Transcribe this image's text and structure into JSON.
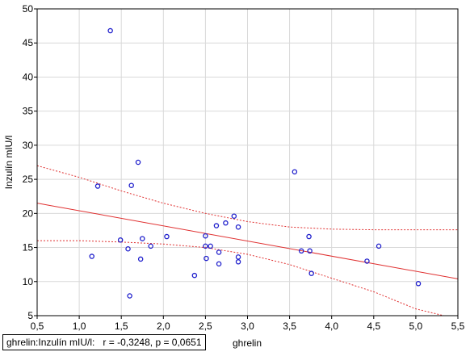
{
  "chart_data": {
    "type": "scatter",
    "xlabel": "ghrelin",
    "ylabel": "Inzulín mIU/l",
    "xlim": [
      0.5,
      5.5
    ],
    "ylim": [
      5,
      50
    ],
    "x_ticks": [
      "0,5",
      "1,0",
      "1,5",
      "2,0",
      "2,5",
      "3,0",
      "3,5",
      "4,0",
      "4,5",
      "5,0",
      "5,5"
    ],
    "y_ticks": [
      "5",
      "10",
      "15",
      "20",
      "25",
      "30",
      "35",
      "40",
      "45",
      "50"
    ],
    "grid": true,
    "legend": {
      "label": "ghrelin:Inzulín mIU/l:",
      "stats": "r = -0,3248, p = 0,0651",
      "placement": "bottom-left"
    },
    "colors": {
      "points": "#1f1fcc",
      "fit": "#e03030",
      "grid": "#d9d9d9"
    },
    "points": [
      [
        1.37,
        46.8
      ],
      [
        1.7,
        27.5
      ],
      [
        1.22,
        24.0
      ],
      [
        1.62,
        24.1
      ],
      [
        3.56,
        26.1
      ],
      [
        1.15,
        13.7
      ],
      [
        1.49,
        16.1
      ],
      [
        1.58,
        14.8
      ],
      [
        1.6,
        7.9
      ],
      [
        1.73,
        13.3
      ],
      [
        1.75,
        16.3
      ],
      [
        1.85,
        15.2
      ],
      [
        2.04,
        16.6
      ],
      [
        2.37,
        10.9
      ],
      [
        2.5,
        16.7
      ],
      [
        2.5,
        15.2
      ],
      [
        2.51,
        13.4
      ],
      [
        2.56,
        15.2
      ],
      [
        2.63,
        18.2
      ],
      [
        2.66,
        14.3
      ],
      [
        2.66,
        12.6
      ],
      [
        2.74,
        18.6
      ],
      [
        2.84,
        19.6
      ],
      [
        2.89,
        18.0
      ],
      [
        2.89,
        13.6
      ],
      [
        2.89,
        12.9
      ],
      [
        3.64,
        14.5
      ],
      [
        3.73,
        16.6
      ],
      [
        3.74,
        14.5
      ],
      [
        3.76,
        11.2
      ],
      [
        4.42,
        13.0
      ],
      [
        4.56,
        15.2
      ],
      [
        5.03,
        9.7
      ]
    ],
    "regression": {
      "x": [
        0.5,
        5.5
      ],
      "y": [
        21.5,
        10.4
      ]
    },
    "ci_upper": {
      "x": [
        0.5,
        1.0,
        1.5,
        2.0,
        2.5,
        3.0,
        3.5,
        4.0,
        4.5,
        5.0,
        5.5
      ],
      "y": [
        27.0,
        25.3,
        23.3,
        21.5,
        20.0,
        18.8,
        18.0,
        17.7,
        17.6,
        17.6,
        17.6
      ]
    },
    "ci_lower": {
      "x": [
        0.5,
        1.0,
        1.5,
        2.0,
        2.5,
        3.0,
        3.5,
        4.0,
        4.5,
        5.0,
        5.5
      ],
      "y": [
        16.0,
        16.0,
        15.8,
        15.5,
        15.0,
        14.0,
        12.5,
        10.5,
        8.5,
        6.0,
        4.5
      ]
    }
  }
}
